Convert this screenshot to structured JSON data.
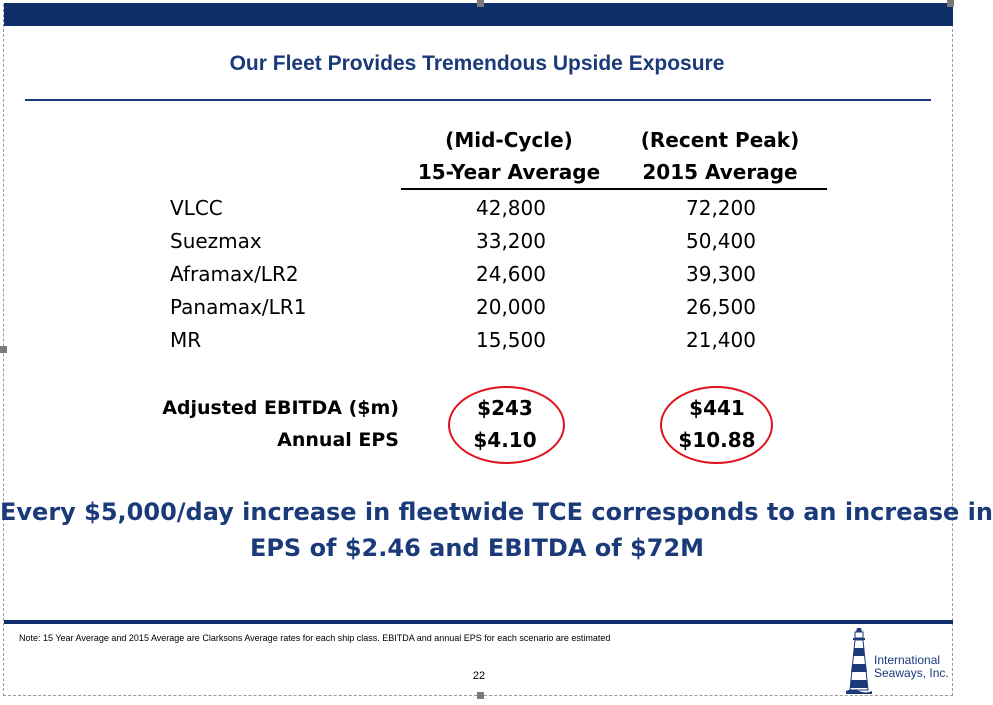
{
  "slide": {
    "title": "Our Fleet Provides Tremendous Upside Exposure",
    "page_number": "22",
    "note": "Note:  15 Year Average and 2015 Average are Clarksons Average rates for each ship class.  EBITDA and annual EPS for each scenario are estimated"
  },
  "table": {
    "columns": [
      {
        "line1": "(Mid-Cycle)",
        "line2": "15-Year Average"
      },
      {
        "line1": "(Recent Peak)",
        "line2": "2015 Average"
      }
    ],
    "rows": [
      {
        "label": "VLCC",
        "mid": "42,800",
        "peak": "72,200"
      },
      {
        "label": "Suezmax",
        "mid": "33,200",
        "peak": "50,400"
      },
      {
        "label": "Aframax/LR2",
        "mid": "24,600",
        "peak": "39,300"
      },
      {
        "label": "Panamax/LR1",
        "mid": "20,000",
        "peak": "26,500"
      },
      {
        "label": "MR",
        "mid": "15,500",
        "peak": "21,400"
      }
    ],
    "summary": [
      {
        "label": "Adjusted EBITDA ($m)",
        "mid": "$243",
        "peak": "$441"
      },
      {
        "label": "Annual EPS",
        "mid": "$4.10",
        "peak": "$10.88"
      }
    ]
  },
  "callout": {
    "line1": "Every $5,000/day increase in fleetwide TCE corresponds to an increase in",
    "line2": "EPS of $2.46 and EBITDA of $72M"
  },
  "logo": {
    "line1": "International",
    "line2": "Seaways, Inc.",
    "icon": "lighthouse-icon"
  },
  "colors": {
    "navy": "#0f2f6b",
    "title_blue": "#1b3a7a",
    "highlight_circle": "#e0141e"
  }
}
